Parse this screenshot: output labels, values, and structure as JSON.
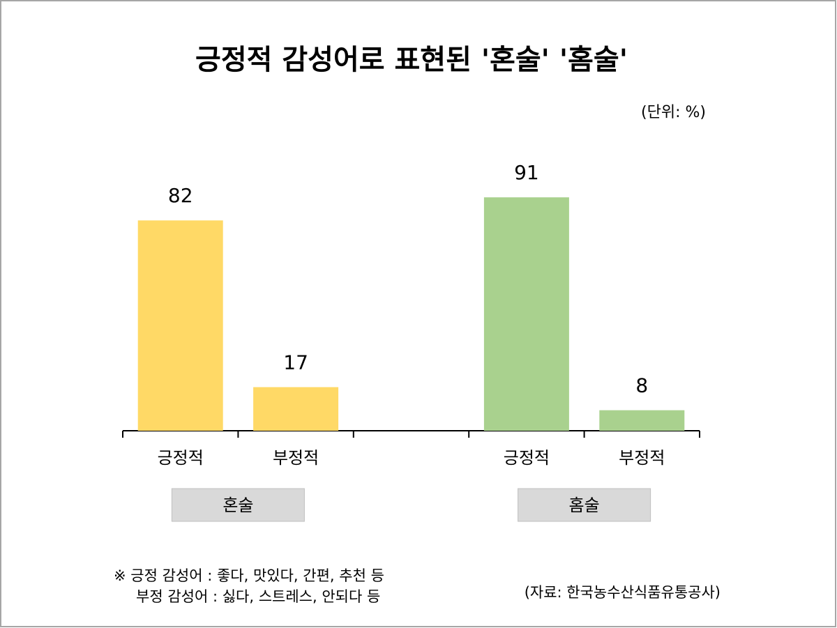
{
  "chart_data": {
    "type": "bar",
    "title": "긍정적 감성어로 표현된 '혼술' '홈술'",
    "unit": "(단위: %)",
    "categories": [
      "긍정적",
      "부정적",
      null,
      "긍정적",
      "부정적"
    ],
    "series": [
      {
        "name": "혼술",
        "color": "#ffd966",
        "values": [
          82,
          17,
          null,
          null,
          null
        ]
      },
      {
        "name": "홈술",
        "color": "#a9d18e",
        "values": [
          null,
          null,
          null,
          91,
          8
        ]
      }
    ],
    "ylim": [
      0,
      100
    ],
    "notes": [
      "※ 긍정 감성어 : 좋다, 맛있다, 간편, 추천 등",
      "부정 감성어 : 싫다, 스트레스, 안되다 등"
    ],
    "source": "(자료: 한국농수산식품유통공사)"
  }
}
